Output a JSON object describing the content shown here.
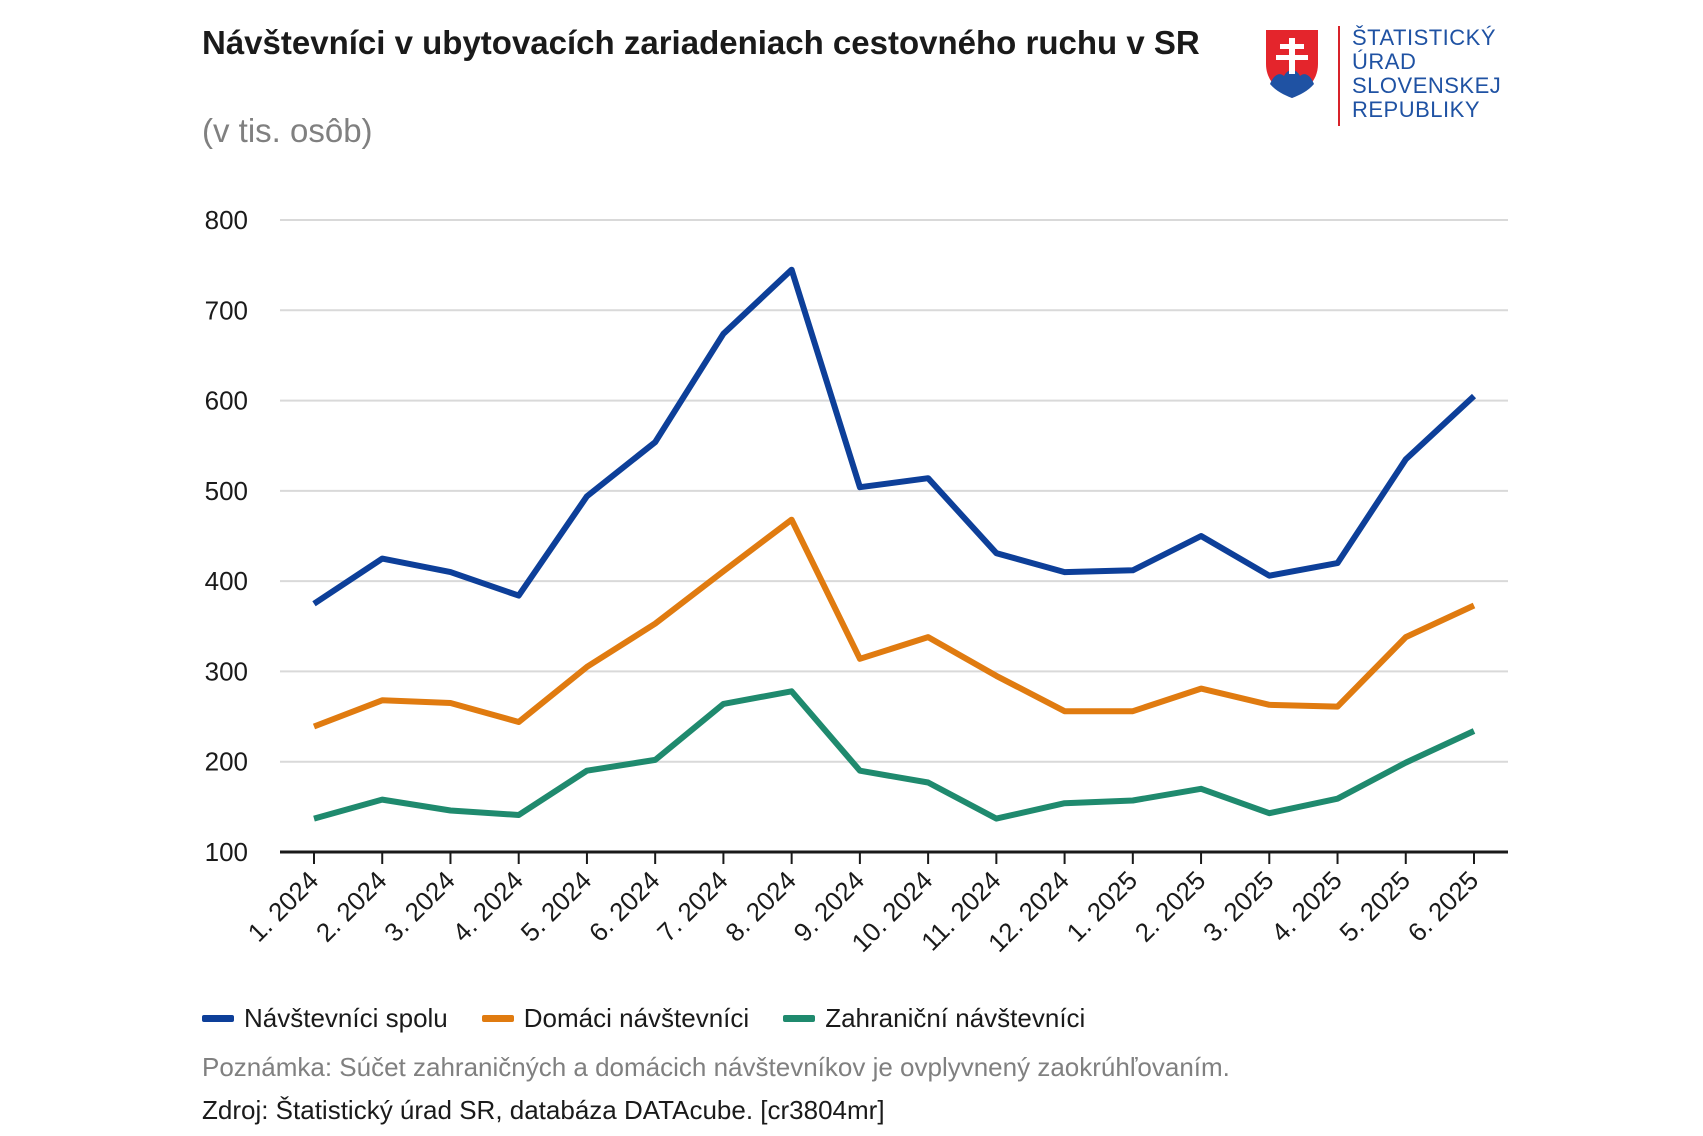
{
  "header": {
    "title": "Návštevníci v ubytovacích zariadeniach cestovného ruchu v SR",
    "subtitle": "(v tis. osôb)"
  },
  "logo": {
    "lines": [
      "ŠTATISTICKÝ",
      "ÚRAD",
      "SLOVENSKEJ",
      "REPUBLIKY"
    ],
    "icon": "slovak-coat-of-arms-icon"
  },
  "footer": {
    "note": "Poznámka: Súčet zahraničných a domácich návštevníkov je ovplyvnený zaokrúhľovaním.",
    "source": "Zdroj: Štatistický úrad SR, databáza DATAcube. [cr3804mr]"
  },
  "chart_data": {
    "type": "line",
    "title": "Návštevníci v ubytovacích zariadeniach cestovného ruchu v SR",
    "subtitle": "(v tis. osôb)",
    "xlabel": "",
    "ylabel": "",
    "ylim": [
      100,
      800
    ],
    "yticks": [
      "100",
      "200",
      "300",
      "400",
      "500",
      "600",
      "700",
      "800"
    ],
    "grid": true,
    "legend_position": "bottom-left",
    "categories": [
      "1. 2024",
      "2. 2024",
      "3. 2024",
      "4. 2024",
      "5. 2024",
      "6. 2024",
      "7. 2024",
      "8. 2024",
      "9. 2024",
      "10. 2024",
      "11. 2024",
      "12. 2024",
      "1. 2025",
      "2. 2025",
      "3. 2025",
      "4. 2025",
      "5. 2025",
      "6. 2025"
    ],
    "series": [
      {
        "name": "Návštevníci spolu",
        "color": "#0d3f99",
        "values": [
          375,
          425,
          410,
          384,
          494,
          554,
          674,
          745,
          504,
          514,
          431,
          410,
          412,
          450,
          406,
          420,
          535,
          605
        ]
      },
      {
        "name": "Domáci návštevníci",
        "color": "#e07b10",
        "values": [
          239,
          268,
          265,
          244,
          305,
          353,
          411,
          468,
          314,
          338,
          295,
          256,
          256,
          281,
          263,
          261,
          338,
          373
        ]
      },
      {
        "name": "Zahraniční návštevníci",
        "color": "#1f8a6e",
        "values": [
          137,
          158,
          146,
          141,
          190,
          202,
          264,
          278,
          190,
          177,
          137,
          154,
          157,
          170,
          143,
          159,
          199,
          234
        ]
      }
    ]
  }
}
